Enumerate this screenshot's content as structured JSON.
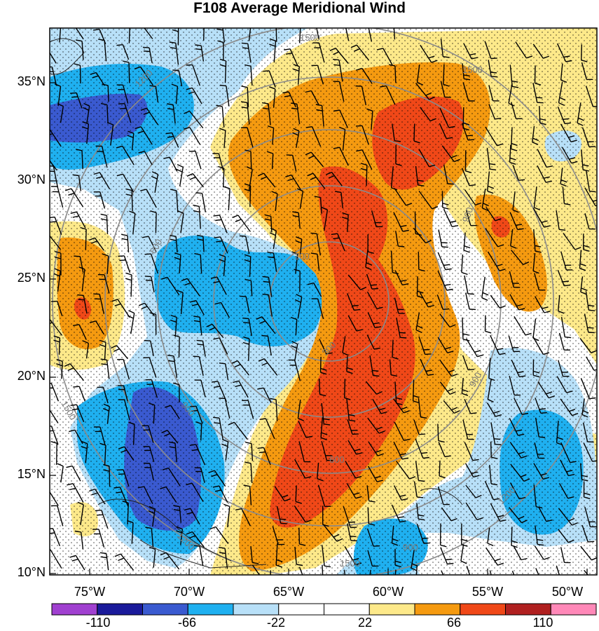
{
  "title": "F108 Average Meridional Wind",
  "lat_labels": [
    "35°N",
    "30°N",
    "25°N",
    "20°N",
    "15°N",
    "10°N"
  ],
  "lon_labels": [
    "75°W",
    "70°W",
    "65°W",
    "60°W",
    "55°W",
    "50°W"
  ],
  "contour_labels": [
    "1500",
    "1500",
    "1200",
    "900",
    "900",
    "600",
    "300",
    "300",
    "600",
    "900",
    "1200",
    "1500",
    "1200",
    "900",
    "1500"
  ],
  "colorbar": {
    "colors": [
      "#a040d0",
      "#1a1a9a",
      "#3a5ad0",
      "#1fb0f0",
      "#b8e0f8",
      "#ffffff",
      "#ffffff",
      "#fde98a",
      "#f59a10",
      "#f04818",
      "#b02020",
      "#ff88b8"
    ],
    "labels": [
      "-110",
      "-66",
      "-22",
      "22",
      "66",
      "110"
    ]
  },
  "chart_data": {
    "type": "heatmap",
    "title": "F108 Average Meridional Wind",
    "x_ticks": [
      "75°W",
      "70°W",
      "65°W",
      "60°W",
      "55°W",
      "50°W"
    ],
    "y_ticks": [
      "35°N",
      "30°N",
      "25°N",
      "20°N",
      "15°N",
      "10°N"
    ],
    "xlim": [
      -77,
      -49.5
    ],
    "ylim": [
      10,
      38
    ],
    "color_levels": [
      -110,
      -66,
      -22,
      22,
      66,
      110
    ],
    "overlays": [
      "wind barbs",
      "stippling",
      "range rings"
    ]
  }
}
